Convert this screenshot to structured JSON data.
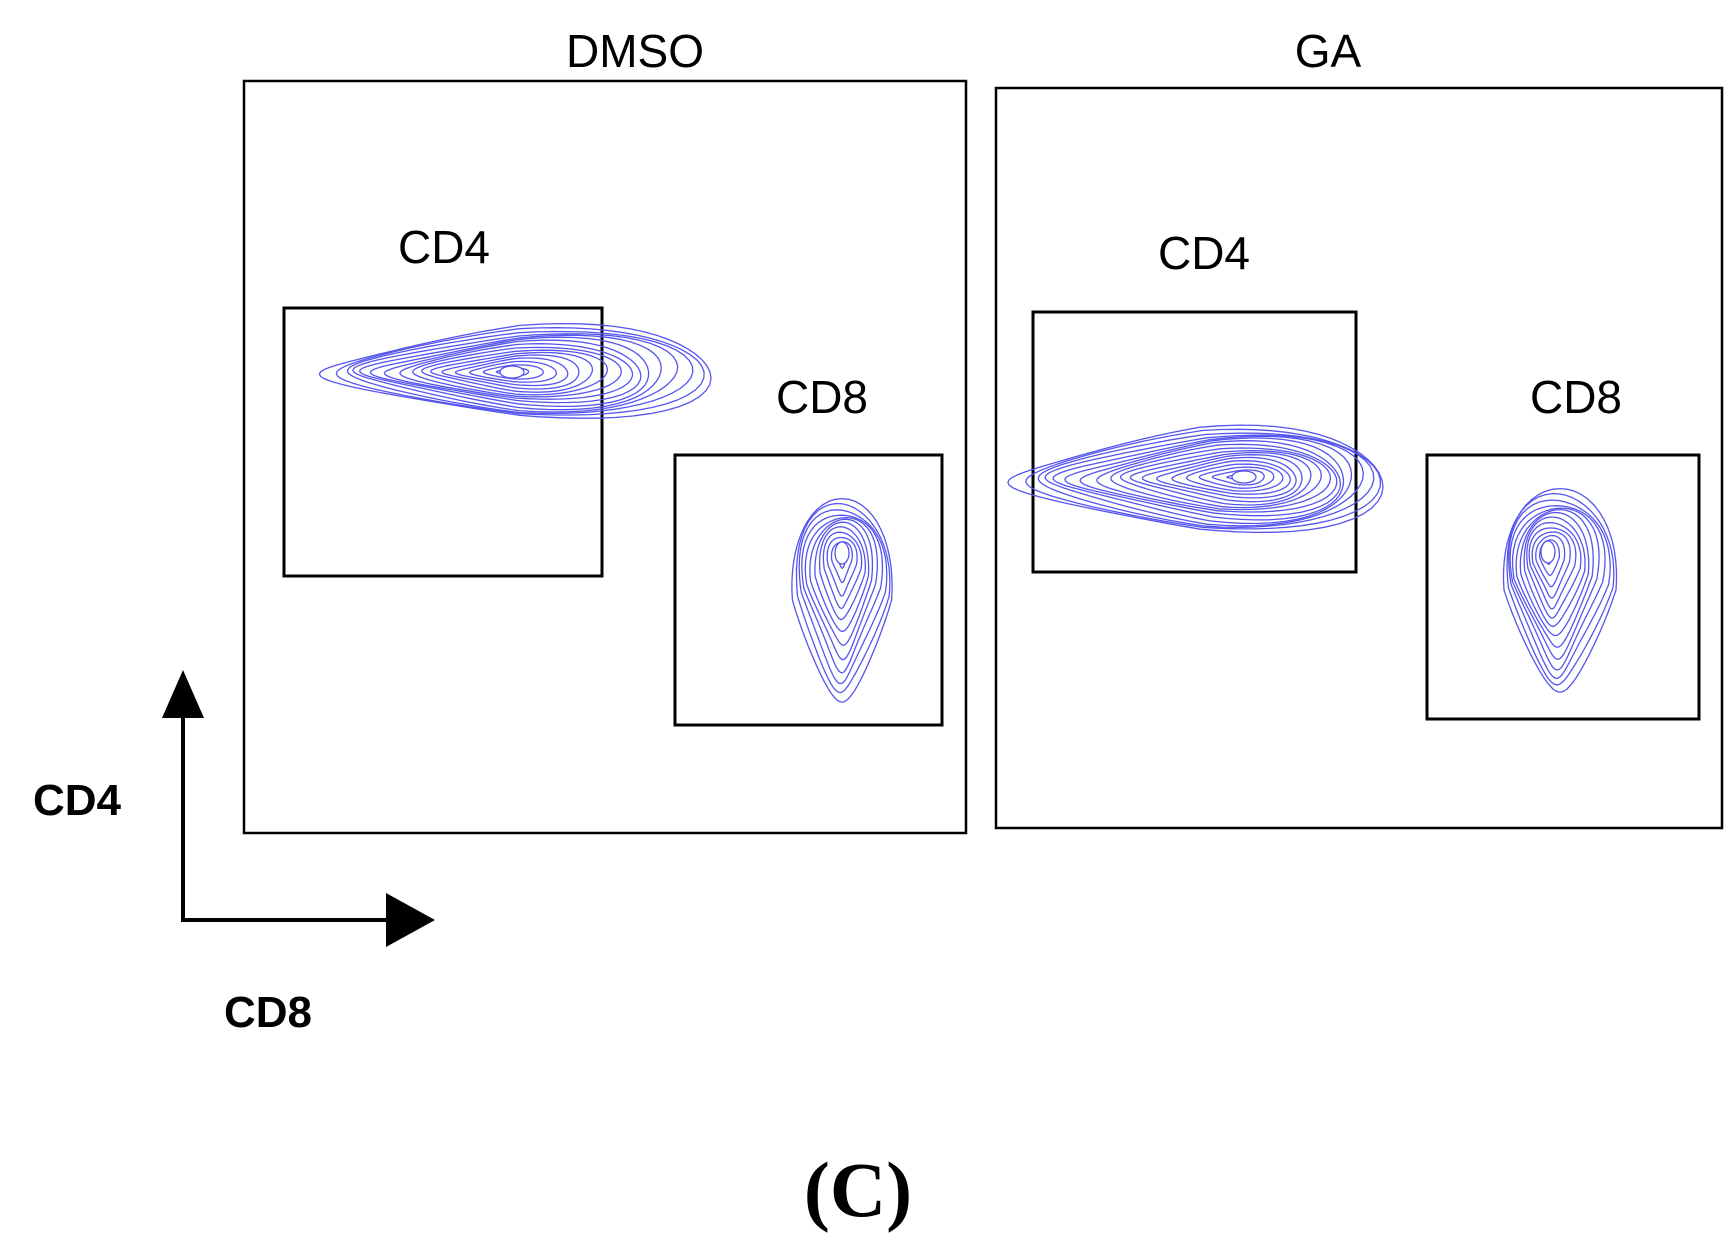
{
  "chart_data": {
    "type": "contour",
    "panels": [
      {
        "title": "DMSO",
        "gates": [
          {
            "label": "CD4",
            "contour_levels": 16,
            "population": "CD4"
          },
          {
            "label": "CD8",
            "contour_levels": 12,
            "population": "CD8"
          }
        ]
      },
      {
        "title": "GA",
        "gates": [
          {
            "label": "CD4",
            "contour_levels": 18,
            "population": "CD4"
          },
          {
            "label": "CD8",
            "contour_levels": 14,
            "population": "CD8"
          }
        ]
      }
    ],
    "axes": {
      "y_label": "CD4",
      "x_label": "CD8"
    },
    "figure_label": "(C)",
    "contour_color": "#5555ee"
  }
}
